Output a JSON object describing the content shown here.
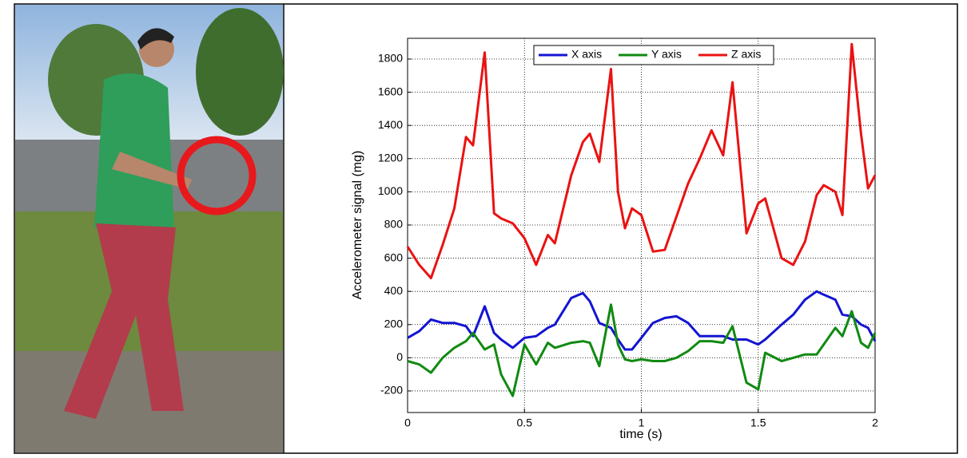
{
  "chart_data": {
    "type": "line",
    "x": [
      0,
      0.05,
      0.1,
      0.15,
      0.2,
      0.25,
      0.28,
      0.33,
      0.37,
      0.4,
      0.45,
      0.5,
      0.55,
      0.6,
      0.63,
      0.7,
      0.75,
      0.78,
      0.82,
      0.87,
      0.9,
      0.93,
      0.96,
      1,
      1.05,
      1.1,
      1.15,
      1.2,
      1.25,
      1.3,
      1.35,
      1.39,
      1.45,
      1.5,
      1.53,
      1.6,
      1.65,
      1.7,
      1.75,
      1.78,
      1.83,
      1.86,
      1.9,
      1.94,
      1.97,
      2
    ],
    "series": [
      {
        "name": "X axis",
        "color": "#1414d2",
        "values": [
          120,
          160,
          230,
          210,
          210,
          190,
          130,
          310,
          150,
          110,
          60,
          120,
          130,
          180,
          200,
          360,
          390,
          340,
          210,
          180,
          110,
          50,
          50,
          120,
          210,
          240,
          250,
          210,
          130,
          130,
          130,
          110,
          110,
          80,
          110,
          200,
          260,
          350,
          400,
          380,
          350,
          260,
          250,
          200,
          180,
          100
        ]
      },
      {
        "name": "Y axis",
        "color": "#118a11",
        "values": [
          -20,
          -40,
          -90,
          0,
          60,
          100,
          150,
          50,
          80,
          -100,
          -230,
          80,
          -40,
          90,
          60,
          90,
          100,
          90,
          -50,
          320,
          80,
          -10,
          -20,
          -10,
          -20,
          -20,
          0,
          40,
          100,
          100,
          90,
          190,
          -150,
          -190,
          30,
          -20,
          0,
          20,
          20,
          80,
          180,
          130,
          280,
          90,
          60,
          150
        ]
      },
      {
        "name": "Z axis",
        "color": "#ea1212",
        "values": [
          670,
          560,
          480,
          680,
          900,
          1330,
          1280,
          1840,
          870,
          840,
          810,
          720,
          560,
          740,
          690,
          1100,
          1300,
          1350,
          1180,
          1740,
          1000,
          780,
          900,
          860,
          640,
          650,
          850,
          1050,
          1200,
          1370,
          1220,
          1660,
          750,
          930,
          960,
          600,
          560,
          700,
          980,
          1040,
          1000,
          860,
          1890,
          1350,
          1020,
          1100
        ]
      }
    ],
    "x_label": "time (s)",
    "y_label": "Accelerometer signal (mg)",
    "xlim": [
      0,
      2
    ],
    "xticks": [
      0,
      0.5,
      1,
      1.5,
      2
    ],
    "ylim": [
      -330,
      1925
    ],
    "yticks": [
      -200,
      0,
      200,
      400,
      600,
      800,
      1000,
      1200,
      1400,
      1600,
      1800
    ],
    "grid": true,
    "legend": "top"
  }
}
